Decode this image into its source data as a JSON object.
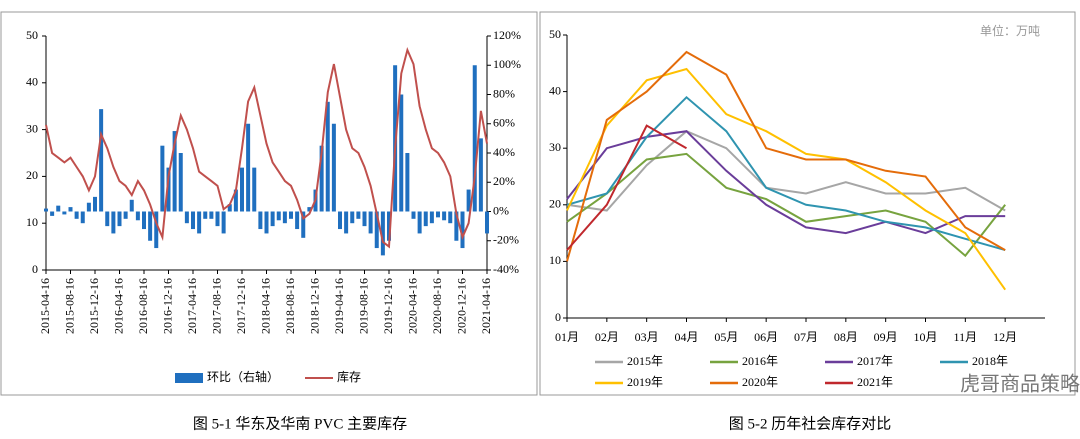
{
  "chart_data": [
    {
      "type": "bar_line",
      "caption": "图 5-1 华东及华南 PVC 主要库存",
      "categories": [
        "2015-04-16",
        null,
        null,
        null,
        "2015-08-16",
        null,
        null,
        null,
        "2015-12-16",
        null,
        null,
        null,
        "2016-04-16",
        null,
        null,
        null,
        "2016-08-16",
        null,
        null,
        null,
        "2016-12-16",
        null,
        null,
        null,
        "2017-04-16",
        null,
        null,
        null,
        "2017-08-16",
        null,
        null,
        null,
        "2017-12-16",
        null,
        null,
        null,
        "2018-04-16",
        null,
        null,
        null,
        "2018-08-16",
        null,
        null,
        null,
        "2018-12-16",
        null,
        null,
        null,
        "2019-04-16",
        null,
        null,
        null,
        "2019-08-16",
        null,
        null,
        null,
        "2019-12-16",
        null,
        null,
        null,
        "2020-04-16",
        null,
        null,
        null,
        "2020-08-16",
        null,
        null,
        null,
        "2020-12-16",
        null,
        null,
        null,
        "2021-04-16"
      ],
      "ylim": [
        0,
        50
      ],
      "yticks": [
        0,
        10,
        20,
        30,
        40,
        50
      ],
      "y2lim": [
        -40,
        120
      ],
      "y2ticks": [
        {
          "value": -40,
          "label": "-40%"
        },
        {
          "value": -20,
          "label": "-20%"
        },
        {
          "value": 0,
          "label": "0%"
        },
        {
          "value": 20,
          "label": "20%"
        },
        {
          "value": 40,
          "label": "40%"
        },
        {
          "value": 60,
          "label": "60%"
        },
        {
          "value": 80,
          "label": "80%"
        },
        {
          "value": 100,
          "label": "100%"
        },
        {
          "value": 120,
          "label": "120%"
        }
      ],
      "series": [
        {
          "name": "环比（右轴）",
          "type": "bar",
          "axis": "y2",
          "color": "#1f6fbf",
          "values": [
            2,
            -3,
            4,
            -2,
            3,
            -5,
            -8,
            6,
            10,
            70,
            -10,
            -15,
            -10,
            -5,
            8,
            -6,
            -12,
            -20,
            -25,
            45,
            30,
            55,
            40,
            -8,
            -12,
            -15,
            -5,
            -5,
            -10,
            -15,
            5,
            15,
            30,
            60,
            30,
            -12,
            -15,
            -10,
            -6,
            -8,
            -5,
            -12,
            -18,
            3,
            15,
            45,
            75,
            60,
            -12,
            -15,
            -8,
            -5,
            -10,
            -15,
            -25,
            -30,
            -20,
            100,
            80,
            40,
            -5,
            -15,
            -10,
            -8,
            -4,
            -6,
            -8,
            -20,
            -25,
            15,
            100,
            50,
            -15
          ]
        },
        {
          "name": "库存",
          "type": "line",
          "color": "#c0504d",
          "values": [
            31,
            25,
            24,
            23,
            24,
            22,
            20,
            17,
            20,
            29,
            26,
            22,
            19,
            18,
            16,
            19,
            17,
            14,
            10,
            7,
            20,
            27,
            33,
            30,
            26,
            21,
            20,
            19,
            18,
            13,
            14,
            17,
            26,
            36,
            39,
            33,
            27,
            23,
            21,
            19,
            18,
            15,
            11,
            12,
            15,
            25,
            38,
            44,
            37,
            30,
            26,
            25,
            22,
            18,
            12,
            6,
            5,
            26,
            42,
            47,
            44,
            35,
            30,
            26,
            25,
            23,
            20,
            12,
            7,
            10,
            20,
            34,
            27
          ]
        }
      ]
    },
    {
      "type": "line",
      "caption": "图 5-2 历年社会库存对比",
      "unit_label": "单位：万吨",
      "categories": [
        "01月",
        "02月",
        "03月",
        "04月",
        "05月",
        "06月",
        "07月",
        "08月",
        "09月",
        "10月",
        "11月",
        "12月"
      ],
      "ylim": [
        0,
        50
      ],
      "yticks": [
        0,
        10,
        20,
        30,
        40,
        50
      ],
      "series": [
        {
          "name": "2015年",
          "color": "#a6a6a6",
          "values": [
            20,
            19,
            27,
            33,
            30,
            23,
            22,
            24,
            22,
            22,
            23,
            19
          ]
        },
        {
          "name": "2016年",
          "color": "#77a33f",
          "values": [
            17,
            22,
            28,
            29,
            23,
            21,
            17,
            18,
            19,
            17,
            11,
            20
          ]
        },
        {
          "name": "2017年",
          "color": "#6a3d9a",
          "values": [
            21,
            30,
            32,
            33,
            26,
            20,
            16,
            15,
            17,
            15,
            18,
            18
          ]
        },
        {
          "name": "2018年",
          "color": "#2f94b0",
          "values": [
            20,
            22,
            32,
            39,
            33,
            23,
            20,
            19,
            17,
            16,
            14,
            12
          ]
        },
        {
          "name": "2019年",
          "color": "#ffc000",
          "values": [
            19,
            34,
            42,
            44,
            36,
            33,
            29,
            28,
            24,
            19,
            15,
            5
          ]
        },
        {
          "name": "2020年",
          "color": "#e46c0a",
          "values": [
            10,
            35,
            40,
            47,
            43,
            30,
            28,
            28,
            26,
            25,
            16,
            12
          ]
        },
        {
          "name": "2021年",
          "color": "#c0282d",
          "values": [
            12,
            20,
            34,
            30,
            null,
            null,
            null,
            null,
            null,
            null,
            null,
            null
          ]
        }
      ]
    }
  ],
  "watermark": "虎哥商品策略"
}
